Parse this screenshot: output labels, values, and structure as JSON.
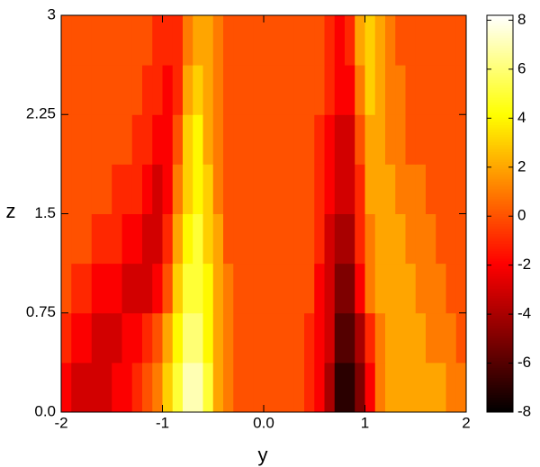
{
  "chart_data": {
    "type": "contour",
    "xlabel": "y",
    "ylabel": "z",
    "colormap": "hot",
    "clim": [
      -8,
      8.2
    ],
    "cticks": [
      -8,
      -6,
      -4,
      -2,
      0,
      2,
      4,
      6,
      8
    ],
    "xlim": [
      -2,
      2
    ],
    "ylim": [
      0,
      3
    ],
    "xticks": [
      -2,
      -1,
      {
        "value": 0,
        "label": "0.0"
      },
      1,
      2
    ],
    "yticks": [
      {
        "value": 0,
        "label": "0.0"
      },
      0.75,
      1.5,
      2.25,
      3
    ],
    "x": [
      -1.95,
      -1.85,
      -1.75,
      -1.65,
      -1.55,
      -1.45,
      -1.35,
      -1.25,
      -1.15,
      -1.05,
      -0.95,
      -0.85,
      -0.75,
      -0.65,
      -0.55,
      -0.45,
      -0.35,
      -0.25,
      -0.15,
      -0.05,
      0.05,
      0.15,
      0.25,
      0.35,
      0.45,
      0.55,
      0.65,
      0.75,
      0.85,
      0.95,
      1.05,
      1.15,
      1.25,
      1.35,
      1.45,
      1.55,
      1.65,
      1.75,
      1.85,
      1.95
    ],
    "z": [
      0.1875,
      0.5625,
      0.9375,
      1.3125,
      1.6875,
      2.0625,
      2.4375,
      2.8125
    ],
    "values": [
      [
        -2,
        -3,
        -3,
        -3,
        -3,
        -2,
        -2,
        -1,
        0,
        1,
        3,
        5,
        7,
        7,
        5,
        2,
        1,
        0,
        0,
        0,
        0,
        0,
        0,
        0,
        -1,
        -2,
        -4,
        -7,
        -7,
        -5,
        -2,
        1,
        2,
        2,
        2,
        2,
        2,
        2,
        1,
        1
      ],
      [
        -1,
        -2,
        -2,
        -3,
        -3,
        -3,
        -2,
        -2,
        -1,
        0,
        2,
        4,
        6,
        6,
        4,
        2,
        1,
        0,
        0,
        0,
        0,
        0,
        0,
        0,
        -1,
        -2,
        -3,
        -6,
        -6,
        -4,
        -1,
        1,
        2,
        2,
        2,
        2,
        1,
        1,
        1,
        0
      ],
      [
        0,
        -1,
        -1,
        -2,
        -2,
        -2,
        -3,
        -3,
        -3,
        -2,
        0,
        3,
        5,
        5,
        4,
        2,
        1,
        0,
        0,
        0,
        0,
        0,
        0,
        0,
        0,
        -2,
        -3,
        -5,
        -5,
        -2,
        1,
        2,
        2,
        2,
        2,
        1,
        1,
        1,
        0,
        0
      ],
      [
        0,
        0,
        0,
        -1,
        -1,
        -1,
        -2,
        -2,
        -3,
        -3,
        -1,
        2,
        4,
        5,
        3,
        2,
        0,
        0,
        0,
        0,
        0,
        0,
        0,
        0,
        0,
        -1,
        -3,
        -4,
        -4,
        -1,
        1,
        2,
        2,
        2,
        1,
        1,
        1,
        0,
        0,
        0
      ],
      [
        0,
        0,
        0,
        0,
        0,
        -1,
        -1,
        -1,
        -2,
        -3,
        -2,
        1,
        3,
        4,
        3,
        1,
        0,
        0,
        0,
        0,
        0,
        0,
        0,
        0,
        0,
        -1,
        -2,
        -3,
        -3,
        -1,
        2,
        2,
        2,
        1,
        1,
        1,
        0,
        0,
        0,
        0
      ],
      [
        0,
        0,
        0,
        0,
        0,
        0,
        0,
        -1,
        -1,
        -2,
        -2,
        0,
        3,
        4,
        2,
        1,
        0,
        0,
        0,
        0,
        0,
        0,
        0,
        0,
        0,
        -1,
        -2,
        -3,
        -3,
        0,
        2,
        2,
        1,
        1,
        0,
        0,
        0,
        0,
        0,
        0
      ],
      [
        0,
        0,
        0,
        0,
        0,
        0,
        0,
        0,
        -1,
        -1,
        -2,
        -1,
        2,
        3,
        2,
        1,
        0,
        0,
        0,
        0,
        0,
        0,
        0,
        0,
        0,
        0,
        -1,
        -2,
        -2,
        1,
        3,
        2,
        1,
        1,
        0,
        0,
        0,
        0,
        0,
        0
      ],
      [
        0,
        0,
        0,
        0,
        0,
        0,
        0,
        0,
        0,
        -1,
        -1,
        -1,
        1,
        2,
        2,
        1,
        0,
        0,
        0,
        0,
        0,
        0,
        0,
        0,
        0,
        0,
        -1,
        -2,
        -1,
        2,
        3,
        2,
        1,
        0,
        0,
        0,
        0,
        0,
        0,
        0
      ]
    ]
  }
}
